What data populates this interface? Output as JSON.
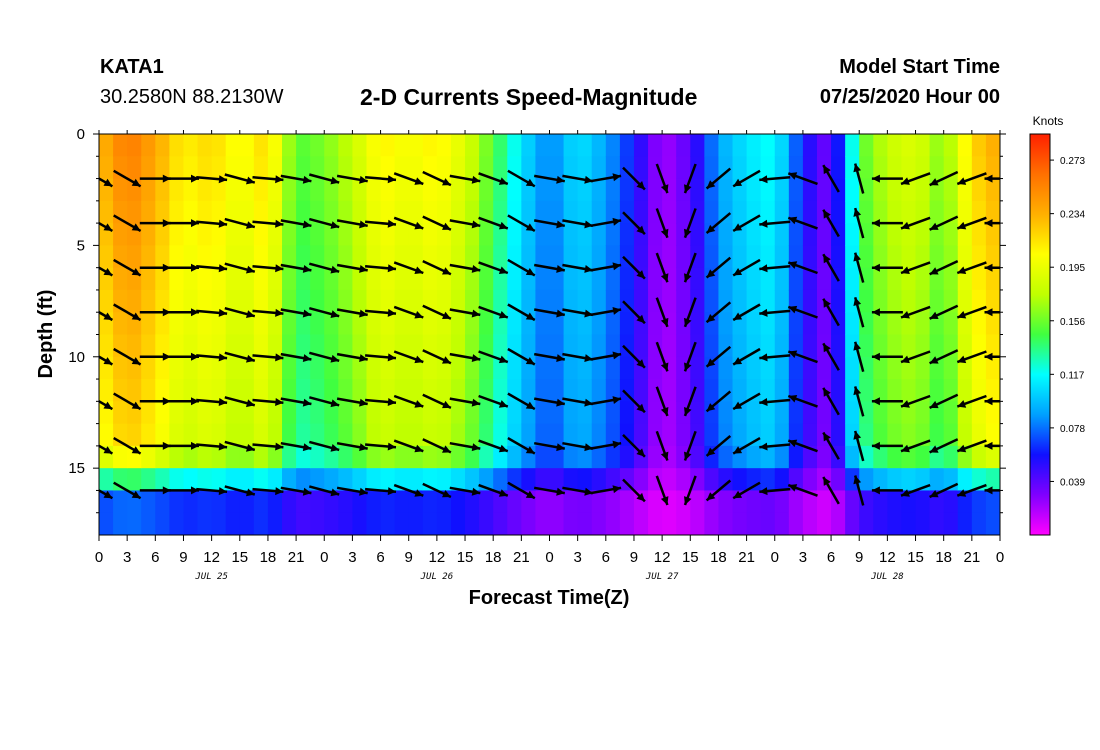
{
  "header": {
    "station": "KATA1",
    "coordinates": "30.2580N 88.2130W",
    "title": "2-D Currents Speed-Magnitude",
    "model_start_label": "Model Start Time",
    "model_start_value": "07/25/2020 Hour 00"
  },
  "chart_data": {
    "type": "heatmap",
    "title": "2-D Currents Speed-Magnitude",
    "xlabel": "Forecast Time(Z)",
    "ylabel": "Depth (ft)",
    "x_range_hours": [
      0,
      96
    ],
    "y_range_ft": [
      0,
      18
    ],
    "x_tick_labels": [
      "0",
      "3",
      "6",
      "9",
      "12",
      "15",
      "18",
      "21",
      "0",
      "3",
      "6",
      "9",
      "12",
      "15",
      "18",
      "21",
      "0",
      "3",
      "6",
      "9",
      "12",
      "15",
      "18",
      "21",
      "0",
      "3",
      "6",
      "9",
      "12",
      "15",
      "18",
      "21",
      "0"
    ],
    "date_labels": [
      {
        "text": "JUL 25",
        "hour": 12
      },
      {
        "text": "JUL 26",
        "hour": 36
      },
      {
        "text": "JUL 27",
        "hour": 60
      },
      {
        "text": "JUL 28",
        "hour": 84
      }
    ],
    "y_ticks": [
      0,
      5,
      10,
      15
    ],
    "colorbar": {
      "title": "Knots",
      "tick_labels": [
        "0.273",
        "0.234",
        "0.195",
        "0.156",
        "0.117",
        "0.078",
        "0.039"
      ],
      "tick_values": [
        0.273,
        0.234,
        0.195,
        0.156,
        0.117,
        0.078,
        0.039
      ],
      "range": [
        0.0,
        0.292
      ],
      "colors": [
        "#ff00ff",
        "#8000ff",
        "#1010ff",
        "#00a0ff",
        "#00ffff",
        "#40ff40",
        "#c0ff00",
        "#ffff00",
        "#ffb000",
        "#ff7000",
        "#ff2000"
      ]
    },
    "speed_profile_by_hour": [
      {
        "hour": 0,
        "knots": 0.23
      },
      {
        "hour": 3,
        "knots": 0.26
      },
      {
        "hour": 6,
        "knots": 0.24
      },
      {
        "hour": 9,
        "knots": 0.21
      },
      {
        "hour": 12,
        "knots": 0.22
      },
      {
        "hour": 15,
        "knots": 0.2
      },
      {
        "hour": 18,
        "knots": 0.22
      },
      {
        "hour": 21,
        "knots": 0.15
      },
      {
        "hour": 24,
        "knots": 0.16
      },
      {
        "hour": 27,
        "knots": 0.18
      },
      {
        "hour": 30,
        "knots": 0.21
      },
      {
        "hour": 33,
        "knots": 0.2
      },
      {
        "hour": 36,
        "knots": 0.21
      },
      {
        "hour": 39,
        "knots": 0.19
      },
      {
        "hour": 42,
        "knots": 0.15
      },
      {
        "hour": 45,
        "knots": 0.11
      },
      {
        "hour": 48,
        "knots": 0.08
      },
      {
        "hour": 51,
        "knots": 0.11
      },
      {
        "hour": 54,
        "knots": 0.09
      },
      {
        "hour": 57,
        "knots": 0.06
      },
      {
        "hour": 60,
        "knots": 0.02
      },
      {
        "hour": 63,
        "knots": 0.04
      },
      {
        "hour": 66,
        "knots": 0.09
      },
      {
        "hour": 69,
        "knots": 0.11
      },
      {
        "hour": 72,
        "knots": 0.12
      },
      {
        "hour": 75,
        "knots": 0.06
      },
      {
        "hour": 78,
        "knots": 0.03
      },
      {
        "hour": 81,
        "knots": 0.15
      },
      {
        "hour": 84,
        "knots": 0.18
      },
      {
        "hour": 87,
        "knots": 0.19
      },
      {
        "hour": 90,
        "knots": 0.16
      },
      {
        "hour": 93,
        "knots": 0.22
      },
      {
        "hour": 96,
        "knots": 0.24
      }
    ],
    "vector_depths_ft": [
      2,
      4,
      6,
      8,
      10,
      12,
      14,
      16
    ],
    "vector_dirs_deg_by_hour": [
      {
        "hour": 0,
        "deg": 120
      },
      {
        "hour": 3,
        "deg": 120
      },
      {
        "hour": 6,
        "deg": 90
      },
      {
        "hour": 9,
        "deg": 90
      },
      {
        "hour": 12,
        "deg": 95
      },
      {
        "hour": 15,
        "deg": 105
      },
      {
        "hour": 18,
        "deg": 95
      },
      {
        "hour": 21,
        "deg": 100
      },
      {
        "hour": 24,
        "deg": 105
      },
      {
        "hour": 27,
        "deg": 100
      },
      {
        "hour": 30,
        "deg": 95
      },
      {
        "hour": 33,
        "deg": 110
      },
      {
        "hour": 36,
        "deg": 115
      },
      {
        "hour": 39,
        "deg": 100
      },
      {
        "hour": 42,
        "deg": 110
      },
      {
        "hour": 45,
        "deg": 120
      },
      {
        "hour": 48,
        "deg": 100
      },
      {
        "hour": 51,
        "deg": 100
      },
      {
        "hour": 54,
        "deg": 80
      },
      {
        "hour": 57,
        "deg": 135
      },
      {
        "hour": 60,
        "deg": 160
      },
      {
        "hour": 63,
        "deg": 200
      },
      {
        "hour": 66,
        "deg": 230
      },
      {
        "hour": 69,
        "deg": 240
      },
      {
        "hour": 72,
        "deg": 265
      },
      {
        "hour": 75,
        "deg": 290
      },
      {
        "hour": 78,
        "deg": 330
      },
      {
        "hour": 81,
        "deg": 345
      },
      {
        "hour": 84,
        "deg": 270
      },
      {
        "hour": 87,
        "deg": 250
      },
      {
        "hour": 90,
        "deg": 245
      },
      {
        "hour": 93,
        "deg": 250
      },
      {
        "hour": 96,
        "deg": 270
      }
    ]
  }
}
